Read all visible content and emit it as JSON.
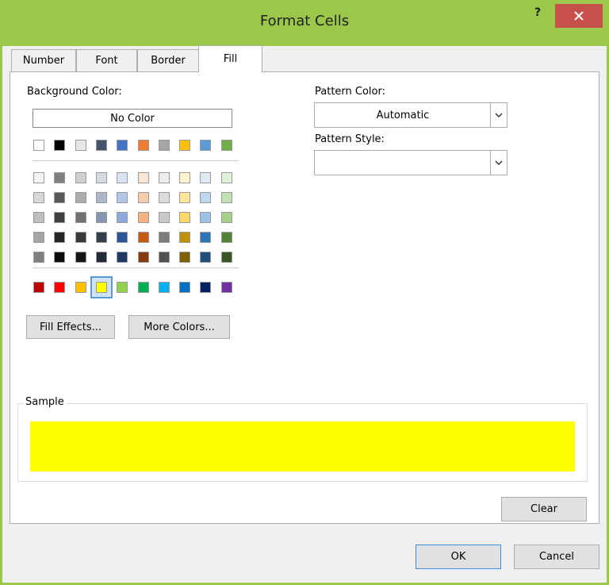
{
  "window": {
    "title": "Format Cells",
    "help": "?"
  },
  "tabs": [
    "Number",
    "Font",
    "Border",
    "Fill"
  ],
  "fill": {
    "background_color_label": "Background Color:",
    "no_color": "No Color",
    "palette": {
      "theme": [
        "#ffffff",
        "#000000",
        "#e7e6e6",
        "#44546a",
        "#4472c4",
        "#ed7d31",
        "#a5a5a5",
        "#ffc000",
        "#5b9bd5",
        "#70ad47"
      ],
      "shades": [
        [
          "#f2f2f2",
          "#7f7f7f",
          "#d0cece",
          "#d6dce4",
          "#d9e2f3",
          "#fbe5d5",
          "#ededed",
          "#fff2cc",
          "#deebf6",
          "#e2efd9"
        ],
        [
          "#d8d8d8",
          "#595959",
          "#aeabab",
          "#adb9ca",
          "#b4c6e7",
          "#f7cbac",
          "#dbdbdb",
          "#fee599",
          "#bdd7ee",
          "#c5e0b3"
        ],
        [
          "#bfbfbf",
          "#3f3f3f",
          "#757070",
          "#8496b0",
          "#8eaadb",
          "#f4b183",
          "#c9c9c9",
          "#ffd965",
          "#9cc3e5",
          "#a8d08d"
        ],
        [
          "#a5a5a5",
          "#262626",
          "#3a3838",
          "#323f4f",
          "#2f5496",
          "#c55a11",
          "#7b7b7b",
          "#bf9000",
          "#2e75b5",
          "#538135"
        ],
        [
          "#7f7f7f",
          "#0c0c0c",
          "#171616",
          "#222a35",
          "#1f3864",
          "#833c0b",
          "#525252",
          "#7f6000",
          "#1e4e79",
          "#375623"
        ]
      ],
      "standard": [
        "#c00000",
        "#ff0000",
        "#ffc000",
        "#ffff00",
        "#92d050",
        "#00b050",
        "#00b0f0",
        "#0070c0",
        "#002060",
        "#7030a0"
      ]
    },
    "fill_effects": "Fill Effects...",
    "more_colors": "More Colors...",
    "pattern_color_label": "Pattern Color:",
    "pattern_color_value": "Automatic",
    "pattern_style_label": "Pattern Style:",
    "sample_label": "Sample"
  },
  "buttons": {
    "clear": "Clear",
    "ok": "OK",
    "cancel": "Cancel"
  }
}
